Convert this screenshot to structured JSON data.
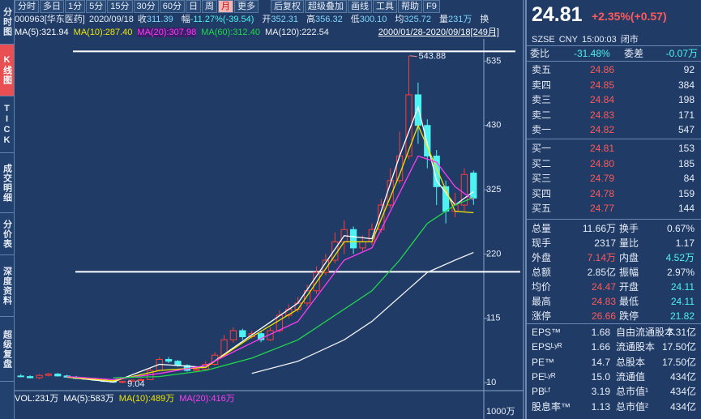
{
  "toolbar": {
    "periods": [
      "分时",
      "多日",
      "1分",
      "5分",
      "15分",
      "30分",
      "60分",
      "日",
      "周",
      "月",
      "更多"
    ],
    "tools": [
      "后复权",
      "超级叠加",
      "画线",
      "工具",
      "帮助",
      "F9"
    ]
  },
  "sidebar": [
    "分时图",
    "K线图",
    "TICK",
    "成交明细",
    "分价表",
    "深度资料",
    "超级复盘"
  ],
  "info": {
    "code": "000963[华东医药]",
    "date": "2020/09/18",
    "items": [
      {
        "label": "收",
        "value": "311.39"
      },
      {
        "label": "幅",
        "value": "-11.27%(-39.54)"
      },
      {
        "label": "开",
        "value": "352.31"
      },
      {
        "label": "高",
        "value": "356.32"
      },
      {
        "label": "低",
        "value": "300.10"
      },
      {
        "label": "均",
        "value": "325.72"
      },
      {
        "label": "量",
        "value": "231万"
      }
    ],
    "trailing": "换",
    "range": "2000/01/28-2020/09/18[249月]"
  },
  "chart_data": {
    "type": "candlestick",
    "open": [
      21,
      20,
      18,
      22,
      24,
      21,
      19,
      17,
      16,
      14,
      12,
      11,
      12,
      14,
      15,
      30,
      48,
      45,
      38,
      30,
      32,
      40,
      55,
      80,
      95,
      85,
      90,
      80,
      95,
      120,
      130,
      140,
      160,
      190,
      210,
      240,
      260,
      230,
      240,
      260,
      300,
      340,
      380,
      480,
      430,
      380,
      330,
      290,
      300,
      352.31
    ],
    "close": [
      20,
      18,
      22,
      24,
      21,
      19,
      17,
      16,
      14,
      12,
      11,
      12,
      14,
      15,
      30,
      48,
      45,
      38,
      30,
      32,
      40,
      55,
      80,
      95,
      85,
      90,
      80,
      95,
      120,
      130,
      140,
      160,
      190,
      210,
      240,
      260,
      230,
      240,
      260,
      300,
      340,
      380,
      480,
      430,
      380,
      330,
      290,
      300,
      350,
      311.39
    ],
    "high": [
      24,
      22,
      24,
      26,
      26,
      23,
      21,
      19,
      18,
      16,
      14,
      13,
      15,
      17,
      34,
      52,
      52,
      47,
      40,
      35,
      45,
      60,
      88,
      100,
      98,
      95,
      95,
      100,
      128,
      138,
      150,
      170,
      200,
      220,
      255,
      275,
      265,
      250,
      270,
      310,
      360,
      420,
      543.88,
      500,
      440,
      390,
      340,
      320,
      360,
      356.32
    ],
    "low": [
      19,
      17,
      16,
      20,
      20,
      18,
      16,
      15,
      13,
      11,
      10,
      9.04,
      11,
      13,
      14,
      28,
      42,
      36,
      28,
      27,
      30,
      38,
      52,
      75,
      80,
      82,
      76,
      78,
      92,
      115,
      125,
      135,
      155,
      185,
      205,
      220,
      220,
      225,
      235,
      255,
      295,
      335,
      375,
      400,
      360,
      300,
      270,
      280,
      290,
      300.1
    ],
    "up_color": "#ff3c3c",
    "down_color": "#4ef2f2",
    "series": [
      {
        "name": "MA(5):321.94",
        "color": "#ffffff",
        "x": [
          5,
          10,
          15,
          20,
          25,
          30,
          35,
          38,
          41,
          43,
          45,
          47,
          49
        ],
        "values": [
          19,
          11,
          40,
          35,
          88,
          140,
          250,
          245,
          380,
          460,
          340,
          300,
          321.94
        ]
      },
      {
        "name": "MA(10):287.40",
        "color": "#f2e600",
        "x": [
          5,
          10,
          15,
          20,
          25,
          30,
          35,
          38,
          41,
          43,
          45,
          47,
          49
        ],
        "values": [
          19,
          13,
          30,
          35,
          85,
          130,
          240,
          240,
          350,
          430,
          360,
          290,
          287.4
        ]
      },
      {
        "name": "MA(20):307.98",
        "color": "#ff3cf0",
        "x": [
          5,
          10,
          15,
          20,
          25,
          30,
          35,
          38,
          41,
          43,
          45,
          47,
          49
        ],
        "values": [
          20,
          15,
          25,
          38,
          75,
          110,
          210,
          230,
          320,
          380,
          370,
          330,
          307.98
        ]
      },
      {
        "name": "MA(60):312.40",
        "color": "#22d84a",
        "x": [
          10,
          15,
          20,
          25,
          30,
          35,
          38,
          41,
          44,
          47,
          49
        ],
        "values": [
          18,
          20,
          30,
          50,
          80,
          130,
          160,
          210,
          270,
          300,
          312.4
        ]
      },
      {
        "name": "MA(120):222.54",
        "color": "#f0f0f0",
        "x": [
          25,
          30,
          35,
          38,
          41,
          44,
          47,
          49
        ],
        "values": [
          25,
          45,
          80,
          110,
          150,
          190,
          210,
          222.54
        ]
      }
    ],
    "hlines": [
      551,
      191
    ],
    "ylim": [
      -3,
      562
    ],
    "yticks": [
      10,
      115,
      220,
      325,
      430,
      535
    ]
  },
  "volume": {
    "labels": [
      "VOL:231万",
      "MA(5):583万",
      "MA(10):489万",
      "MA(20):416万"
    ],
    "tick": "1000万"
  },
  "quote": {
    "price": "24.81",
    "change": "+2.35%(+0.57)",
    "status": [
      "SZSE",
      "CNY",
      "15:00:03",
      "闭市"
    ],
    "ratio": [
      "委比",
      "-31.48%",
      "委差",
      "-0.07万"
    ],
    "asks": [
      [
        "卖五",
        "24.86",
        "92"
      ],
      [
        "卖四",
        "24.85",
        "384"
      ],
      [
        "卖三",
        "24.84",
        "198"
      ],
      [
        "卖二",
        "24.83",
        "171"
      ],
      [
        "卖一",
        "24.82",
        "547"
      ]
    ],
    "bids": [
      [
        "买一",
        "24.81",
        "153"
      ],
      [
        "买二",
        "24.80",
        "185"
      ],
      [
        "买三",
        "24.79",
        "84"
      ],
      [
        "买四",
        "24.78",
        "159"
      ],
      [
        "买五",
        "24.77",
        "144"
      ]
    ],
    "stats": [
      [
        "总量",
        "11.66万",
        "换手",
        "0.67%"
      ],
      [
        "现手",
        "2317",
        "量比",
        "1.17"
      ],
      [
        "外盘",
        "7.14万",
        "内盘",
        "4.52万"
      ],
      [
        "总额",
        "2.85亿",
        "振幅",
        "2.97%"
      ],
      [
        "均价",
        "24.47",
        "开盘",
        "24.11"
      ],
      [
        "最高",
        "24.83",
        "最低",
        "24.11"
      ],
      [
        "涨停",
        "26.66",
        "跌停",
        "21.82"
      ]
    ],
    "fundamentals": [
      [
        "EPS™",
        "1.68",
        "自由流通股本",
        "7.31亿"
      ],
      [
        "EPSᴸʸᴿ",
        "1.66",
        "流通股本",
        "17.50亿"
      ],
      [
        "PE™",
        "14.7",
        "总股本",
        "17.50亿"
      ],
      [
        "PEᴸʸᴿ",
        "15.0",
        "流通值",
        "434亿"
      ],
      [
        "PBᴸᶠ",
        "3.19",
        "总市值¹",
        "434亿"
      ],
      [
        "股息率™",
        "1.13",
        "总市值²",
        "434亿"
      ]
    ]
  }
}
